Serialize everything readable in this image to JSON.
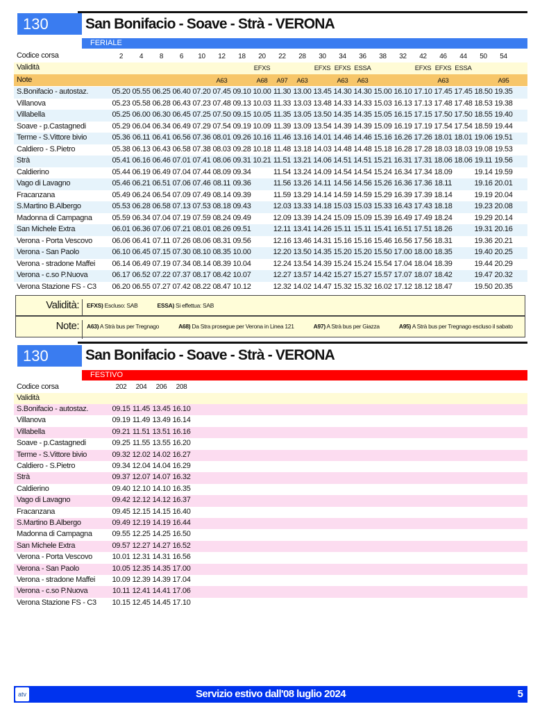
{
  "feriale": {
    "line": "130",
    "title": "San Bonifacio - Soave - Strà - VERONA",
    "band": "FERIALE",
    "band_color": "#3a7cf0",
    "codice_label": "Codice corsa",
    "validita_label": "Validità",
    "note_label": "Note",
    "codici": [
      "2",
      "4",
      "8",
      "6",
      "10",
      "12",
      "18",
      "20",
      "22",
      "28",
      "30",
      "34",
      "36",
      "38",
      "32",
      "42",
      "46",
      "44",
      "50",
      "54"
    ],
    "validita": [
      "",
      "",
      "",
      "",
      "",
      "",
      "",
      "EFXS",
      "",
      "",
      "EFXS",
      "EFXS",
      "ESSA",
      "",
      "",
      "EFXS",
      "EFXS",
      "ESSA",
      "",
      ""
    ],
    "note": [
      "",
      "",
      "",
      "",
      "",
      "A63",
      "",
      "A68",
      "A97",
      "A63",
      "",
      "A63",
      "A63",
      "",
      "",
      "",
      "A63",
      "",
      "",
      "A95"
    ],
    "stops": [
      {
        "name": "S.Bonifacio - autostaz.",
        "times": [
          "05.20",
          "05.55",
          "06.25",
          "06.40",
          "07.20",
          "07.45",
          "09.10",
          "10.00",
          "11.30",
          "13.00",
          "13.45",
          "14.30",
          "14.30",
          "15.00",
          "16.10",
          "17.10",
          "17.45",
          "17.45",
          "18.50",
          "19.35"
        ]
      },
      {
        "name": "Villanova",
        "times": [
          "05.23",
          "05.58",
          "06.28",
          "06.43",
          "07.23",
          "07.48",
          "09.13",
          "10.03",
          "11.33",
          "13.03",
          "13.48",
          "14.33",
          "14.33",
          "15.03",
          "16.13",
          "17.13",
          "17.48",
          "17.48",
          "18.53",
          "19.38"
        ]
      },
      {
        "name": "Villabella",
        "times": [
          "05.25",
          "06.00",
          "06.30",
          "06.45",
          "07.25",
          "07.50",
          "09.15",
          "10.05",
          "11.35",
          "13.05",
          "13.50",
          "14.35",
          "14.35",
          "15.05",
          "16.15",
          "17.15",
          "17.50",
          "17.50",
          "18.55",
          "19.40"
        ]
      },
      {
        "name": "Soave - p.Castagnedi",
        "times": [
          "05.29",
          "06.04",
          "06.34",
          "06.49",
          "07.29",
          "07.54",
          "09.19",
          "10.09",
          "11.39",
          "13.09",
          "13.54",
          "14.39",
          "14.39",
          "15.09",
          "16.19",
          "17.19",
          "17.54",
          "17.54",
          "18.59",
          "19.44"
        ]
      },
      {
        "name": "Terme - S.Vittore bivio",
        "times": [
          "05.36",
          "06.11",
          "06.41",
          "06.56",
          "07.36",
          "08.01",
          "09.26",
          "10.16",
          "11.46",
          "13.16",
          "14.01",
          "14.46",
          "14.46",
          "15.16",
          "16.26",
          "17.26",
          "18.01",
          "18.01",
          "19.06",
          "19.51"
        ]
      },
      {
        "name": "Caldiero - S.Pietro",
        "times": [
          "05.38",
          "06.13",
          "06.43",
          "06.58",
          "07.38",
          "08.03",
          "09.28",
          "10.18",
          "11.48",
          "13.18",
          "14.03",
          "14.48",
          "14.48",
          "15.18",
          "16.28",
          "17.28",
          "18.03",
          "18.03",
          "19.08",
          "19.53"
        ]
      },
      {
        "name": "Strà",
        "times": [
          "05.41",
          "06.16",
          "06.46",
          "07.01",
          "07.41",
          "08.06",
          "09.31",
          "10.21",
          "11.51",
          "13.21",
          "14.06",
          "14.51",
          "14.51",
          "15.21",
          "16.31",
          "17.31",
          "18.06",
          "18.06",
          "19.11",
          "19.56"
        ]
      },
      {
        "name": "Caldierino",
        "times": [
          "05.44",
          "06.19",
          "06.49",
          "07.04",
          "07.44",
          "08.09",
          "09.34",
          "",
          "11.54",
          "13.24",
          "14.09",
          "14.54",
          "14.54",
          "15.24",
          "16.34",
          "17.34",
          "18.09",
          "",
          "19.14",
          "19.59"
        ]
      },
      {
        "name": "Vago di Lavagno",
        "times": [
          "05.46",
          "06.21",
          "06.51",
          "07.06",
          "07.46",
          "08.11",
          "09.36",
          "",
          "11.56",
          "13.26",
          "14.11",
          "14.56",
          "14.56",
          "15.26",
          "16.36",
          "17.36",
          "18.11",
          "",
          "19.16",
          "20.01"
        ]
      },
      {
        "name": "Fracanzana",
        "times": [
          "05.49",
          "06.24",
          "06.54",
          "07.09",
          "07.49",
          "08.14",
          "09.39",
          "",
          "11.59",
          "13.29",
          "14.14",
          "14.59",
          "14.59",
          "15.29",
          "16.39",
          "17.39",
          "18.14",
          "",
          "19.19",
          "20.04"
        ]
      },
      {
        "name": "S.Martino B.Albergo",
        "times": [
          "05.53",
          "06.28",
          "06.58",
          "07.13",
          "07.53",
          "08.18",
          "09.43",
          "",
          "12.03",
          "13.33",
          "14.18",
          "15.03",
          "15.03",
          "15.33",
          "16.43",
          "17.43",
          "18.18",
          "",
          "19.23",
          "20.08"
        ]
      },
      {
        "name": "Madonna di Campagna",
        "times": [
          "05.59",
          "06.34",
          "07.04",
          "07.19",
          "07.59",
          "08.24",
          "09.49",
          "",
          "12.09",
          "13.39",
          "14.24",
          "15.09",
          "15.09",
          "15.39",
          "16.49",
          "17.49",
          "18.24",
          "",
          "19.29",
          "20.14"
        ]
      },
      {
        "name": "San Michele Extra",
        "times": [
          "06.01",
          "06.36",
          "07.06",
          "07.21",
          "08.01",
          "08.26",
          "09.51",
          "",
          "12.11",
          "13.41",
          "14.26",
          "15.11",
          "15.11",
          "15.41",
          "16.51",
          "17.51",
          "18.26",
          "",
          "19.31",
          "20.16"
        ]
      },
      {
        "name": "Verona - Porta Vescovo",
        "times": [
          "06.06",
          "06.41",
          "07.11",
          "07.26",
          "08.06",
          "08.31",
          "09.56",
          "",
          "12.16",
          "13.46",
          "14.31",
          "15.16",
          "15.16",
          "15.46",
          "16.56",
          "17.56",
          "18.31",
          "",
          "19.36",
          "20.21"
        ]
      },
      {
        "name": "Verona - San Paolo",
        "times": [
          "06.10",
          "06.45",
          "07.15",
          "07.30",
          "08.10",
          "08.35",
          "10.00",
          "",
          "12.20",
          "13.50",
          "14.35",
          "15.20",
          "15.20",
          "15.50",
          "17.00",
          "18.00",
          "18.35",
          "",
          "19.40",
          "20.25"
        ]
      },
      {
        "name": "Verona - stradone Maffei",
        "times": [
          "06.14",
          "06.49",
          "07.19",
          "07.34",
          "08.14",
          "08.39",
          "10.04",
          "",
          "12.24",
          "13.54",
          "14.39",
          "15.24",
          "15.24",
          "15.54",
          "17.04",
          "18.04",
          "18.39",
          "",
          "19.44",
          "20.29"
        ]
      },
      {
        "name": "Verona - c.so P.Nuova",
        "times": [
          "06.17",
          "06.52",
          "07.22",
          "07.37",
          "08.17",
          "08.42",
          "10.07",
          "",
          "12.27",
          "13.57",
          "14.42",
          "15.27",
          "15.27",
          "15.57",
          "17.07",
          "18.07",
          "18.42",
          "",
          "19.47",
          "20.32"
        ]
      },
      {
        "name": "Verona Stazione FS - C3",
        "times": [
          "06.20",
          "06.55",
          "07.27",
          "07.42",
          "08.22",
          "08.47",
          "10.12",
          "",
          "12.32",
          "14.02",
          "14.47",
          "15.32",
          "15.32",
          "16.02",
          "17.12",
          "18.12",
          "18.47",
          "",
          "19.50",
          "20.35"
        ]
      }
    ],
    "legend": {
      "validita_head": "Validità:",
      "validita_items": [
        {
          "code": "EFXS)",
          "text": "Escluso: SAB"
        },
        {
          "code": "ESSA)",
          "text": "Si effettua: SAB"
        }
      ],
      "note_head": "Note:",
      "note_items": [
        {
          "code": "A63)",
          "text": "A Strà bus per Tregnago"
        },
        {
          "code": "A68)",
          "text": "Da Stra prosegue per Verona in Linea 121"
        },
        {
          "code": "A97)",
          "text": "A Strà bus per Giazza"
        },
        {
          "code": "A95)",
          "text": "A Strà bus per Tregnago escluso il sabato"
        }
      ]
    }
  },
  "festivo": {
    "line": "130",
    "title": "San Bonifacio - Soave - Strà - VERONA",
    "band": "FESTIVO",
    "band_color": "#ff0000",
    "codice_label": "Codice corsa",
    "validita_label": "Validità",
    "codici": [
      "202",
      "204",
      "206",
      "208"
    ],
    "stops": [
      {
        "name": "S.Bonifacio - autostaz.",
        "times": [
          "09.15",
          "11.45",
          "13.45",
          "16.10"
        ]
      },
      {
        "name": "Villanova",
        "times": [
          "09.19",
          "11.49",
          "13.49",
          "16.14"
        ]
      },
      {
        "name": "Villabella",
        "times": [
          "09.21",
          "11.51",
          "13.51",
          "16.16"
        ]
      },
      {
        "name": "Soave - p.Castagnedi",
        "times": [
          "09.25",
          "11.55",
          "13.55",
          "16.20"
        ]
      },
      {
        "name": "Terme - S.Vittore bivio",
        "times": [
          "09.32",
          "12.02",
          "14.02",
          "16.27"
        ]
      },
      {
        "name": "Caldiero - S.Pietro",
        "times": [
          "09.34",
          "12.04",
          "14.04",
          "16.29"
        ]
      },
      {
        "name": "Strà",
        "times": [
          "09.37",
          "12.07",
          "14.07",
          "16.32"
        ]
      },
      {
        "name": "Caldierino",
        "times": [
          "09.40",
          "12.10",
          "14.10",
          "16.35"
        ]
      },
      {
        "name": "Vago di Lavagno",
        "times": [
          "09.42",
          "12.12",
          "14.12",
          "16.37"
        ]
      },
      {
        "name": "Fracanzana",
        "times": [
          "09.45",
          "12.15",
          "14.15",
          "16.40"
        ]
      },
      {
        "name": "S.Martino B.Albergo",
        "times": [
          "09.49",
          "12.19",
          "14.19",
          "16.44"
        ]
      },
      {
        "name": "Madonna di Campagna",
        "times": [
          "09.55",
          "12.25",
          "14.25",
          "16.50"
        ]
      },
      {
        "name": "San Michele Extra",
        "times": [
          "09.57",
          "12.27",
          "14.27",
          "16.52"
        ]
      },
      {
        "name": "Verona - Porta Vescovo",
        "times": [
          "10.01",
          "12.31",
          "14.31",
          "16.56"
        ]
      },
      {
        "name": "Verona - San Paolo",
        "times": [
          "10.05",
          "12.35",
          "14.35",
          "17.00"
        ]
      },
      {
        "name": "Verona - stradone Maffei",
        "times": [
          "10.09",
          "12.39",
          "14.39",
          "17.04"
        ]
      },
      {
        "name": "Verona - c.so P.Nuova",
        "times": [
          "10.11",
          "12.41",
          "14.41",
          "17.06"
        ]
      },
      {
        "name": "Verona Stazione FS - C3",
        "times": [
          "10.15",
          "12.45",
          "14.45",
          "17.10"
        ]
      }
    ]
  },
  "footer": {
    "logo": "atv",
    "text": "Servizio estivo dall'08 luglio 2024",
    "page": "5",
    "color": "#0033ee"
  },
  "colors": {
    "row_alt_feriale": "#e6f3fb",
    "row_alt_festivo": "#fcdcf0",
    "validita_bg": "#fffbd6",
    "note_bg": "#f7c66a"
  }
}
